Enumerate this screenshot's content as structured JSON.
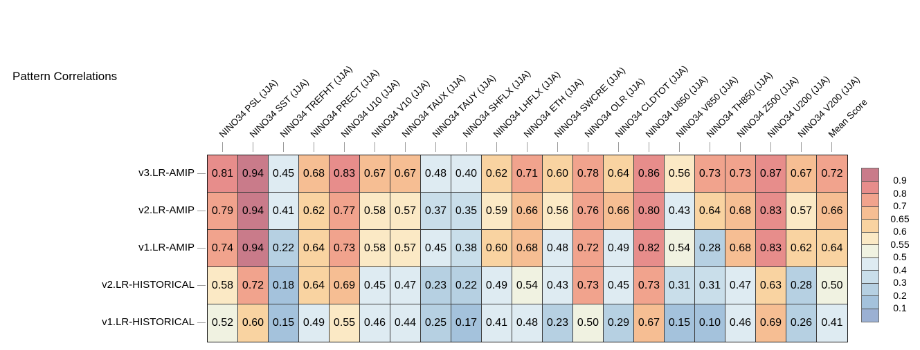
{
  "title": "Pattern Correlations",
  "chart_data": {
    "type": "heatmap",
    "title": "Pattern Correlations",
    "season": "JJA",
    "columns": [
      "NINO34 PSL (JJA)",
      "NINO34 SST (JJA)",
      "NINO34 TREFHT (JJA)",
      "NINO34 PRECT (JJA)",
      "NINO34 U10 (JJA)",
      "NINO34 V10 (JJA)",
      "NINO34 TAUX (JJA)",
      "NINO34 TAUY (JJA)",
      "NINO34 SHFLX (JJA)",
      "NINO34 LHFLX (JJA)",
      "NINO34 ETH (JJA)",
      "NINO34 SWCRE (JJA)",
      "NINO34 OLR (JJA)",
      "NINO34 CLDTOT (JJA)",
      "NINO34 U850 (JJA)",
      "NINO34 V850 (JJA)",
      "NINO34 TH850 (JJA)",
      "NINO34 Z500 (JJA)",
      "NINO34 U200 (JJA)",
      "NINO34 V200 (JJA)",
      "Mean Score"
    ],
    "rows": [
      "v3.LR-AMIP",
      "v2.LR-AMIP",
      "v1.LR-AMIP",
      "v2.LR-HISTORICAL",
      "v1.LR-HISTORICAL"
    ],
    "values": [
      [
        0.81,
        0.94,
        0.45,
        0.68,
        0.83,
        0.67,
        0.67,
        0.48,
        0.4,
        0.62,
        0.71,
        0.6,
        0.78,
        0.64,
        0.86,
        0.56,
        0.73,
        0.73,
        0.87,
        0.67,
        0.72
      ],
      [
        0.79,
        0.94,
        0.41,
        0.62,
        0.77,
        0.58,
        0.57,
        0.37,
        0.35,
        0.59,
        0.66,
        0.56,
        0.76,
        0.66,
        0.8,
        0.43,
        0.64,
        0.68,
        0.83,
        0.57,
        0.66
      ],
      [
        0.74,
        0.94,
        0.22,
        0.64,
        0.73,
        0.58,
        0.57,
        0.45,
        0.38,
        0.6,
        0.68,
        0.48,
        0.72,
        0.49,
        0.82,
        0.54,
        0.28,
        0.68,
        0.83,
        0.62,
        0.64
      ],
      [
        0.58,
        0.72,
        0.18,
        0.64,
        0.69,
        0.45,
        0.47,
        0.23,
        0.22,
        0.49,
        0.54,
        0.43,
        0.73,
        0.45,
        0.73,
        0.31,
        0.31,
        0.47,
        0.63,
        0.28,
        0.5
      ],
      [
        0.52,
        0.6,
        0.15,
        0.49,
        0.55,
        0.46,
        0.44,
        0.25,
        0.17,
        0.41,
        0.48,
        0.23,
        0.5,
        0.29,
        0.67,
        0.15,
        0.1,
        0.46,
        0.69,
        0.26,
        0.41
      ]
    ],
    "value_format": "2dp",
    "grid": "on",
    "legend_position": "right",
    "colorbar": {
      "tick_labels": [
        "0.9",
        "0.8",
        "0.7",
        "0.65",
        "0.6",
        "0.55",
        "0.5",
        "0.4",
        "0.3",
        "0.2",
        "0.1"
      ],
      "thresholds": [
        0.9,
        0.8,
        0.7,
        0.65,
        0.6,
        0.55,
        0.5,
        0.4,
        0.3,
        0.2,
        0.1
      ],
      "band_colors": [
        "#c97b8a",
        "#e78d8b",
        "#f1a38d",
        "#f6be93",
        "#f9d3a1",
        "#fbe9c5",
        "#f0f2e1",
        "#deebf2",
        "#c9deea",
        "#b6d0e2",
        "#a4c2dc",
        "#9bb0d3"
      ]
    },
    "colors": {
      "background": "#ffffff",
      "cell_border": "#3c3c3c",
      "outer_border": "#161616",
      "tick": "#9a9a9a",
      "text": "#000000"
    }
  }
}
